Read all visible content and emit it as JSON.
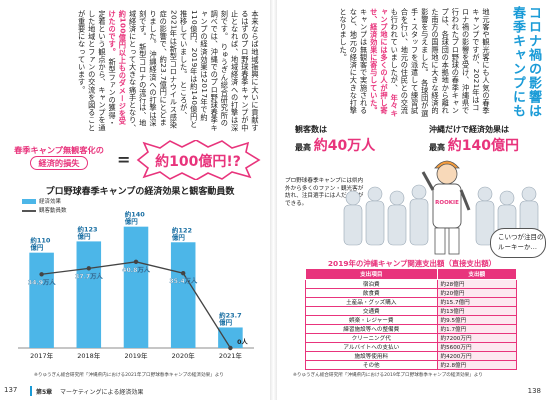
{
  "left_page": {
    "body_text": [
      "本来ならば地域振興に大いに貢献するはずのプロ野球春季キャンプが中止となれば、地域経済への打撃は深刻です。",
      "りゅうぎん総合研究所の調べでは、沖縄でのプロ野球春季キャンプの経済効果は2017年で約110億円、2019年は約140億円と推移していました。",
      "ところが、2021年は新型コロナウイルス感染症の影響で、約23.7億円にとどまりました。",
      "沖縄経済への打撃は深刻です。",
      "新型コロナの流行は、地域経済にとって大きな痛手となり、"
    ],
    "highlight_text": "約100億円以上ものダメージを受けたのです。",
    "tail_text": "新型ファンの獲得・定着という観点から、キャンプを通した地域とファンの交流を図ることが重要になっています。",
    "banner": {
      "line1": "春季キャンプ無観客化の",
      "line2": "経済的損失",
      "equals": "=",
      "result": "約100億円!?"
    },
    "chart_title": "プロ野球春季キャンプの経済効果と観客動員数",
    "legend_bar": "経済効果",
    "legend_line": "観客動員数",
    "source": "※りゅうぎん総合研究所「沖縄県内における2021年プロ野球春季キャンプの経済効果」より",
    "footer_chapter": "第5章",
    "footer_title": "マーケティングによる経済効果",
    "page_number": "137"
  },
  "chart_data": {
    "type": "bar",
    "title": "プロ野球春季キャンプの経済効果と観客動員数",
    "categories": [
      "2017年",
      "2018年",
      "2019年",
      "2020年",
      "2021年"
    ],
    "series": [
      {
        "name": "経済効果",
        "unit": "億円",
        "values": [
          110,
          123,
          140,
          122,
          23.7
        ],
        "labels": [
          "約110億円",
          "約123億円",
          "約140億円",
          "約122億円",
          "約23.7億円"
        ]
      },
      {
        "name": "観客動員数",
        "unit": "万人",
        "values": [
          34.9,
          37.7,
          40.8,
          35.4,
          0
        ],
        "labels": [
          "34.9万人",
          "37.7万人",
          "40.8万人",
          "35.4万人",
          "0人"
        ]
      }
    ],
    "ylim": [
      0,
      150
    ],
    "bar_color": "#4cb6e8",
    "line_color": "#444444",
    "legend": "top-left"
  },
  "right_page": {
    "title_line1": "コロナ禍の影響は",
    "title_line2": "春季キャンプにも",
    "body_text": [
      "地元客や観光客にも人気の春季キャンプですが、2021年はコロナ禍の影響を受け、沖縄県で行われたプロ野球の春季キャンプは、各球団の本拠地から離れた南方の国際地に大きな経済的影響を与えました。",
      "各球団が選手・スタッフを派遣して練習試合を行い、地元の住民との交流も行われていましたが、",
      "キャンプは無観客で実施されるなど、地元の経済に大きな打撃となりました。"
    ],
    "highlight_text": "年々キャンプ地には多くの人が押し寄せ、経済効果に寄与していた。",
    "stat1_prefix": "観客数は",
    "stat1_mid": "最高",
    "stat1_value": "約40万人",
    "stat2_prefix": "沖縄だけで経済効果は",
    "stat2_mid": "最高",
    "stat2_value": "約140億円",
    "desc": "プロ野球春季キャンプには県内外から多くのファン・観光客が訪れ、注目選手には人だかりができる。",
    "speech": "こいつが注目のルーキーか…",
    "uniform_text": "ROOKIE",
    "table_title": "2019年の沖縄キャンプ関連支出額（直接支出額）",
    "table_headers": [
      "支出項目",
      "支出額"
    ],
    "table_rows": [
      [
        "宿泊費",
        "約28億円"
      ],
      [
        "飲食費",
        "約20億円"
      ],
      [
        "土産品・グッズ購入",
        "約15.7億円"
      ],
      [
        "交通費",
        "約13億円"
      ],
      [
        "娯楽・レジャー費",
        "約9.5億円"
      ],
      [
        "練習施設等への整備費",
        "約1.7億円"
      ],
      [
        "クリーニング代",
        "約7200万円"
      ],
      [
        "アルバイトへの支払い",
        "約5600万円"
      ],
      [
        "施設等使用料",
        "約4200万円"
      ],
      [
        "その他",
        "約2.8億円"
      ]
    ],
    "source": "※りゅうぎん総合研究所「沖縄県内における2019年プロ野球春季キャンプの経済効果」より",
    "page_number": "138"
  },
  "colors": {
    "accent": "#e8347c",
    "blue": "#1a9bd7",
    "bar": "#4cb6e8"
  }
}
